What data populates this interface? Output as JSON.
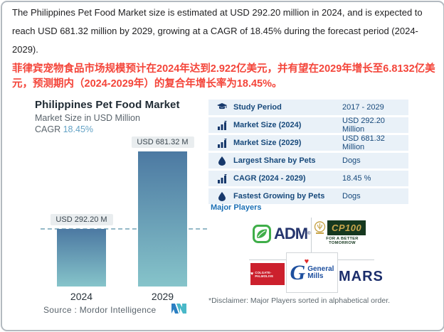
{
  "intro": {
    "english": "The Philippines Pet Food Market size is estimated at USD 292.20 million in 2024, and is expected to reach USD 681.32 million by 2029, growing at a CAGR of 18.45% during the forecast period (2024-2029).",
    "chinese": "菲律宾宠物食品市场规模预计在2024年达到2.922亿美元，并有望在2029年增长至6.8132亿美元，预测期内（2024-2029年）的复合年增长率为18.45%。"
  },
  "chart_data": {
    "type": "bar",
    "title": "Philippines Pet Food Market",
    "subtitle": "Market Size in USD Million",
    "cagr_label": "CAGR",
    "cagr_value": "18.45%",
    "categories": [
      "2024",
      "2029"
    ],
    "values": [
      292.2,
      681.32
    ],
    "bar_labels": [
      "USD 292.20 M",
      "USD 681.32 M"
    ],
    "ylabel": "Market Size in USD Million",
    "xlabel": "",
    "ylim": [
      0,
      681.32
    ],
    "grid": "off",
    "reference_line": "dashed line at 2024 value (292.20)",
    "source": "Source :  Mordor Intelligence"
  },
  "facts_table": {
    "rows": [
      {
        "icon": "graduation-cap-icon",
        "label": "Study Period",
        "value": "2017 - 2029"
      },
      {
        "icon": "bar-chart-icon",
        "label": "Market Size (2024)",
        "value": "USD 292.20 Million"
      },
      {
        "icon": "bar-chart-icon",
        "label": "Market Size (2029)",
        "value": "USD 681.32 Million"
      },
      {
        "icon": "droplet-icon",
        "label": "Largest Share by Pets",
        "value": "Dogs"
      },
      {
        "icon": "bar-chart-icon",
        "label": "CAGR (2024 - 2029)",
        "value": "18.45 %"
      },
      {
        "icon": "droplet-icon",
        "label": "Fastest Growing by Pets",
        "value": "Dogs"
      }
    ]
  },
  "players": {
    "heading": "Major Players",
    "disclaimer": "*Disclaimer: Major Players sorted in alphabetical order.",
    "adm": {
      "name": "ADM",
      "text": "ADM"
    },
    "cp": {
      "name": "CP 100",
      "text": "CP100",
      "tagline": "FOR A BETTER TOMORROW"
    },
    "colgate": {
      "name": "Colgate-Palmolive",
      "text": "COLGATE-PALMOLIVE"
    },
    "general_mills": {
      "name": "General Mills",
      "g": "G",
      "line1": "General",
      "line2": "Mills"
    },
    "mars": {
      "name": "Mars",
      "text": "MARS"
    }
  },
  "colors": {
    "page-border": "#b3bac0",
    "text-dark": "#1f1f21",
    "red-text": "#f4453a",
    "chart-title": "#1f2a33",
    "muted": "#5a646c",
    "cagr-blue": "#64a3c6",
    "bar-top": "#4c79a2",
    "bar-bottom": "#86c4ca",
    "label-box-bg": "#e9edef",
    "dashed": "#94b9c8",
    "row-bg": "#e9f1f8",
    "navy": "#17497b",
    "icon-navy": "#16386b",
    "mp-blue": "#1a6fb5",
    "divider": "#c9cfd3",
    "adm-green": "#3fae49",
    "adm-navy": "#25356d",
    "cp-green": "#16381f",
    "cp-gold": "#c9a64c",
    "colgate-red": "#cc202d",
    "gm-blue": "#1d4f9e",
    "mars-navy": "#1b2d6b",
    "heart-red": "#e02a2a",
    "mordor-blue": "#2b7fc2",
    "mordor-teal": "#49b8c8"
  }
}
